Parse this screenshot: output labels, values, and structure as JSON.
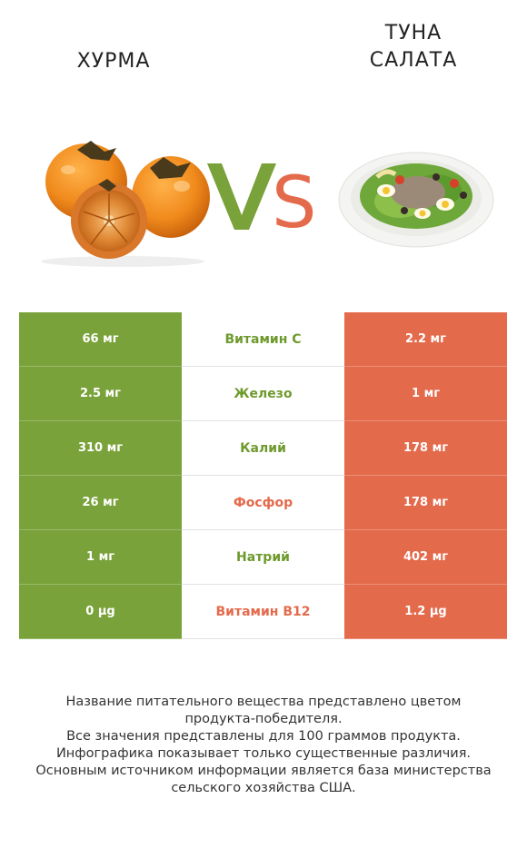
{
  "header": {
    "left_title": "ХУРМА",
    "right_title": "ТУНА\nСАЛАТА",
    "vs_text": "VS"
  },
  "colors": {
    "left": "#7aa23a",
    "right": "#e46a4c"
  },
  "rows": [
    {
      "left": "66 мг",
      "label": "Витамин C",
      "right": "2.2 мг",
      "winner": "left"
    },
    {
      "left": "2.5 мг",
      "label": "Железо",
      "right": "1 мг",
      "winner": "left"
    },
    {
      "left": "310 мг",
      "label": "Калий",
      "right": "178 мг",
      "winner": "left"
    },
    {
      "left": "26 мг",
      "label": "Фосфор",
      "right": "178 мг",
      "winner": "right"
    },
    {
      "left": "1 мг",
      "label": "Натрий",
      "right": "402 мг",
      "winner": "left"
    },
    {
      "left": "0 µg",
      "label": "Витамин B12",
      "right": "1.2 µg",
      "winner": "right"
    }
  ],
  "footer": {
    "line1": "Название питательного вещества представлено цветом",
    "line2": "продукта-победителя.",
    "line3": "Все значения представлены для 100 граммов продукта.",
    "line4": "Инфографика показывает только существенные различия.",
    "line5": "Основным источником информации является база министерства",
    "line6": "сельского хозяйства США."
  }
}
